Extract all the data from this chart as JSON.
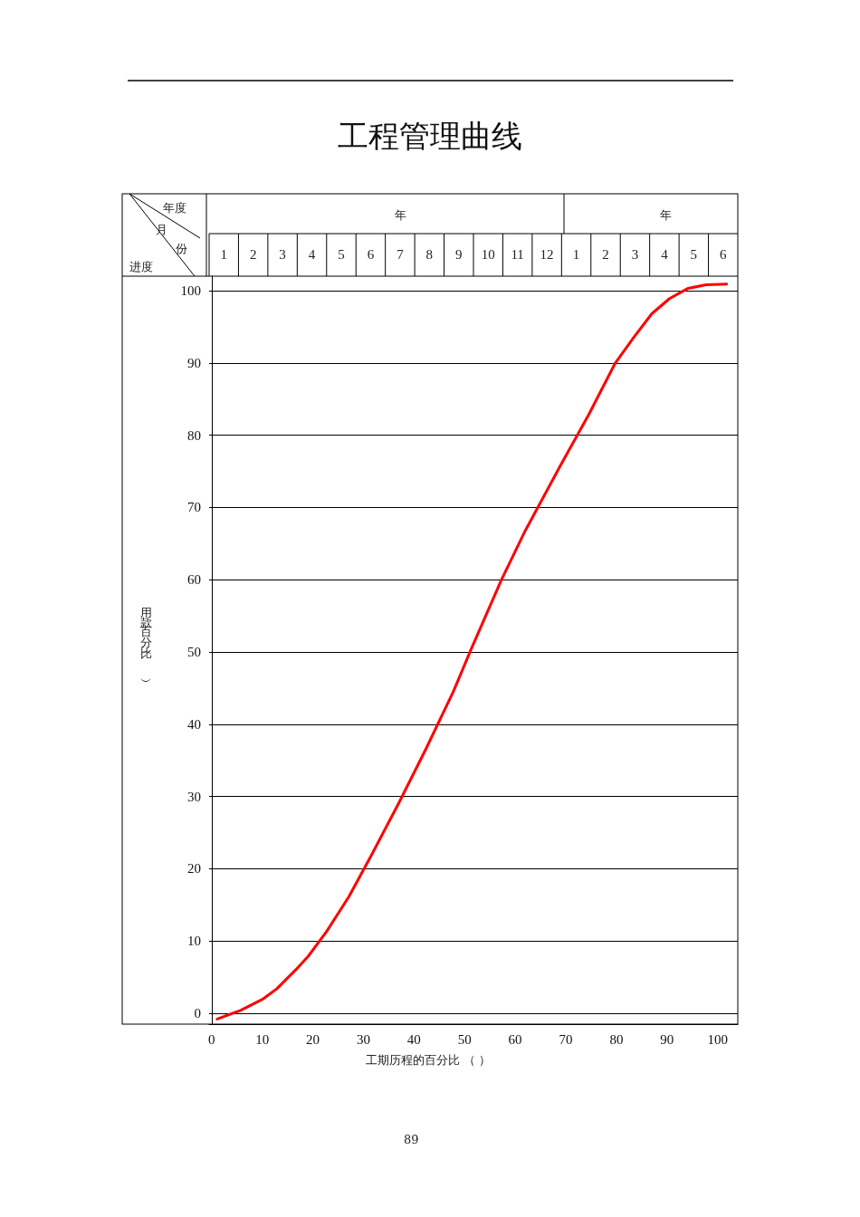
{
  "chart_data": {
    "type": "line",
    "title": "工程管理曲线",
    "xlabel": "工期历程的百分比 （ ）",
    "ylabel": "用款百分比（ ）",
    "annotations": [
      "年度",
      "月",
      "份",
      "进度",
      "年",
      "年",
      "89",
      "1",
      "2",
      "3",
      "4",
      "5",
      "6",
      "7",
      "8",
      "9",
      "10",
      "11",
      "12",
      "1",
      "2",
      "3",
      "4",
      "5",
      "6"
    ],
    "xlim": [
      -0.5,
      104
    ],
    "xticks": [
      0,
      10,
      20,
      30,
      40,
      50,
      60,
      70,
      80,
      90,
      100
    ],
    "ylim": [
      -1.5,
      102
    ],
    "yticks": [
      0,
      10,
      20,
      30,
      40,
      50,
      60,
      70,
      80,
      90,
      100
    ],
    "grid": true,
    "marker": "none",
    "line_style": "solid",
    "series": [
      {
        "color": "#ff0000",
        "x": [
          1.1,
          5.7,
          10.2,
          12.9,
          16.6,
          19.1,
          22.7,
          27.1,
          31.6,
          37,
          42.3,
          47.7,
          51.3,
          57.3,
          62,
          69.1,
          74.5,
          79.8,
          83.4,
          87,
          90.5,
          94.1,
          97.7,
          101.8
        ],
        "values": [
          -0.8,
          0.4,
          2,
          3.4,
          6,
          7.9,
          11.3,
          16.1,
          21.9,
          29.1,
          36.5,
          44.4,
          50.4,
          60,
          66.8,
          76,
          82.8,
          90,
          93.5,
          96.8,
          98.9,
          100.3,
          100.8,
          100.9
        ]
      }
    ]
  }
}
